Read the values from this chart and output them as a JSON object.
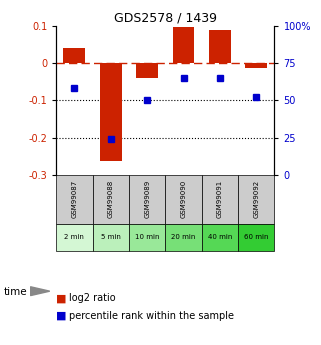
{
  "title": "GDS2578 / 1439",
  "categories": [
    "GSM99087",
    "GSM99088",
    "GSM99089",
    "GSM99090",
    "GSM99091",
    "GSM99092"
  ],
  "time_labels": [
    "2 min",
    "5 min",
    "10 min",
    "20 min",
    "40 min",
    "60 min"
  ],
  "log2_ratio": [
    0.04,
    -0.262,
    -0.04,
    0.097,
    0.089,
    -0.012
  ],
  "percentile_rank": [
    58,
    24,
    50,
    65,
    65,
    52
  ],
  "bar_color": "#cc2200",
  "dot_color": "#0000cc",
  "ylim_left": [
    -0.3,
    0.1
  ],
  "ylim_right": [
    0,
    100
  ],
  "yticks_left": [
    0.1,
    0,
    -0.1,
    -0.2,
    -0.3
  ],
  "yticks_right": [
    100,
    75,
    50,
    25,
    0
  ],
  "ytick_labels_right": [
    "100%",
    "75",
    "50",
    "25",
    "0"
  ],
  "green_colors": [
    "#d4f7d4",
    "#bbf0bb",
    "#99e899",
    "#77e077",
    "#55d855",
    "#33cc33"
  ],
  "gray_color": "#cccccc",
  "bar_width": 0.6,
  "legend_log2": "log2 ratio",
  "legend_pct": "percentile rank within the sample",
  "time_label": "time"
}
